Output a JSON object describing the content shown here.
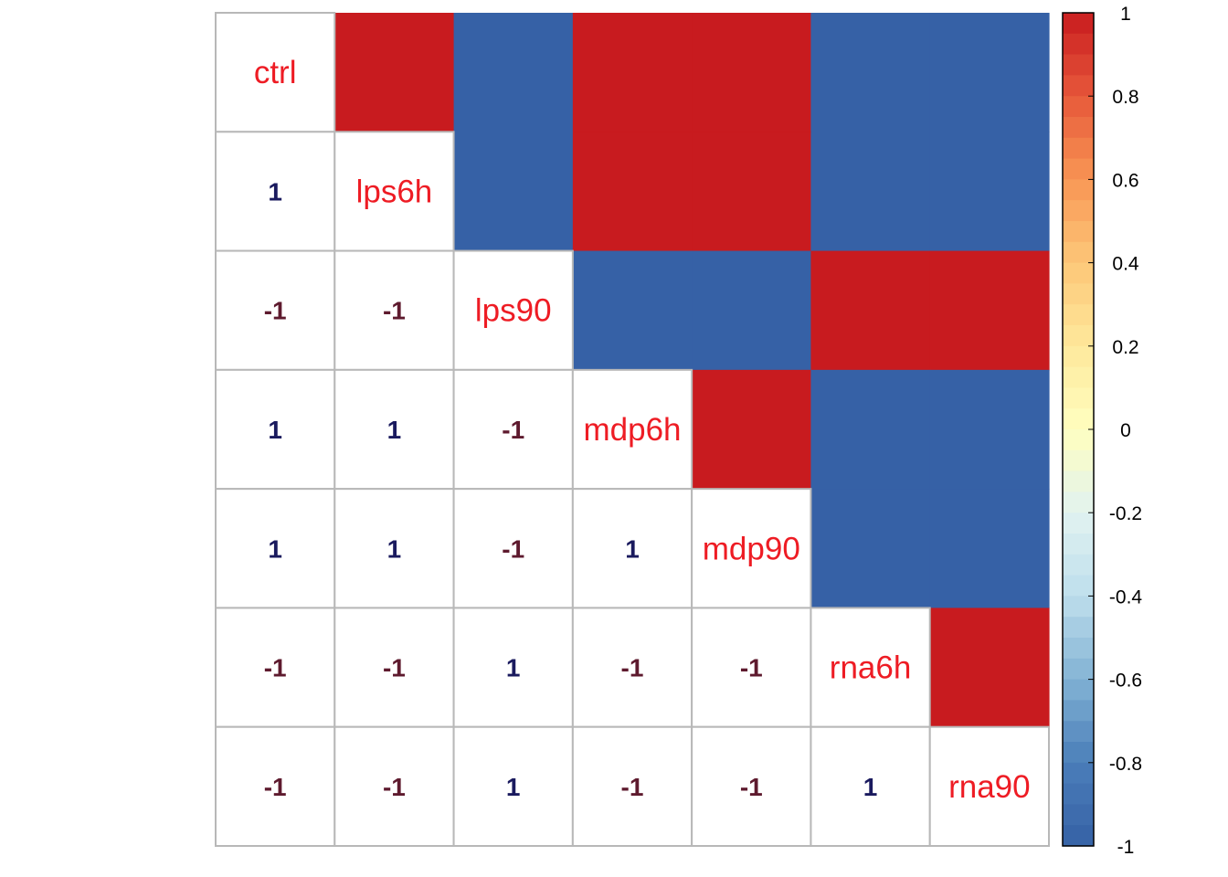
{
  "chart_data": {
    "type": "heatmap",
    "title": "",
    "variables": [
      "ctrl",
      "lps6h",
      "lps90",
      "mdp6h",
      "mdp90",
      "rna6h",
      "rna90"
    ],
    "matrix": [
      [
        1,
        1,
        -1,
        1,
        1,
        -1,
        -1
      ],
      [
        1,
        1,
        -1,
        1,
        1,
        -1,
        -1
      ],
      [
        -1,
        -1,
        1,
        -1,
        -1,
        1,
        1
      ],
      [
        1,
        1,
        -1,
        1,
        1,
        -1,
        -1
      ],
      [
        1,
        1,
        -1,
        1,
        1,
        -1,
        -1
      ],
      [
        -1,
        -1,
        1,
        -1,
        -1,
        1,
        1
      ],
      [
        -1,
        -1,
        1,
        -1,
        -1,
        1,
        1
      ]
    ],
    "lower_triangle": "number",
    "upper_triangle": "color",
    "diagonal": "variable names",
    "colorbar": {
      "range": [
        -1,
        1
      ],
      "ticks": [
        "1",
        "0.8",
        "0.6",
        "0.4",
        "0.2",
        "0",
        "-0.2",
        "-0.4",
        "-0.6",
        "-0.8",
        "-1"
      ],
      "palette": "RdYlBu (reversed)"
    },
    "colors": {
      "positive": "#c81b1f",
      "negative": "#3661a6",
      "diag_label": "#ee1c24",
      "num_positive": "#1a1a5e",
      "num_negative": "#5e1a2e",
      "grid": "#b8b8b8"
    }
  }
}
